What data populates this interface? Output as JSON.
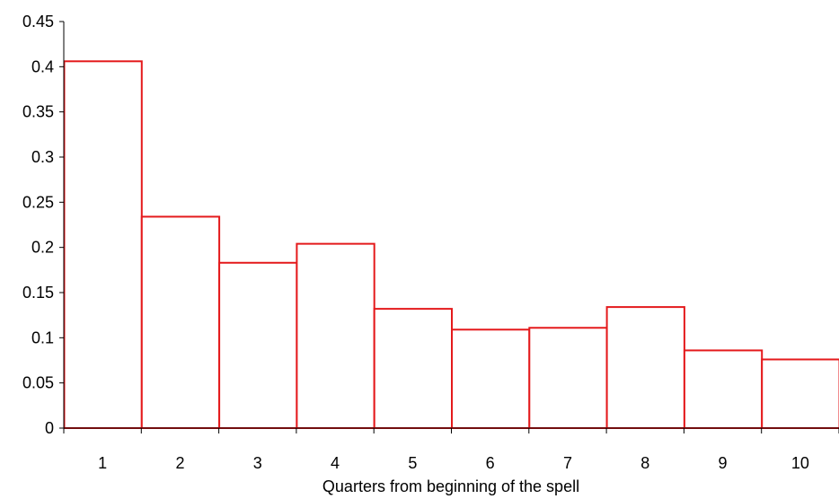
{
  "chart_data": {
    "type": "bar",
    "categories": [
      "1",
      "2",
      "3",
      "4",
      "5",
      "6",
      "7",
      "8",
      "9",
      "10"
    ],
    "values": [
      0.406,
      0.234,
      0.183,
      0.204,
      0.132,
      0.109,
      0.111,
      0.134,
      0.086,
      0.076
    ],
    "title": "",
    "xlabel": "Quarters from beginning of the spell",
    "ylabel": "",
    "ylim": [
      0,
      0.45
    ],
    "yticks": [
      "0",
      "0.05",
      "0.1",
      "0.15",
      "0.2",
      "0.25",
      "0.3",
      "0.35",
      "0.4",
      "0.45"
    ],
    "grid": false,
    "legend": "none",
    "colors": {
      "bar_outline": "#e41a1c",
      "bar_fill": "#ffffff",
      "axis": "#000000"
    }
  }
}
